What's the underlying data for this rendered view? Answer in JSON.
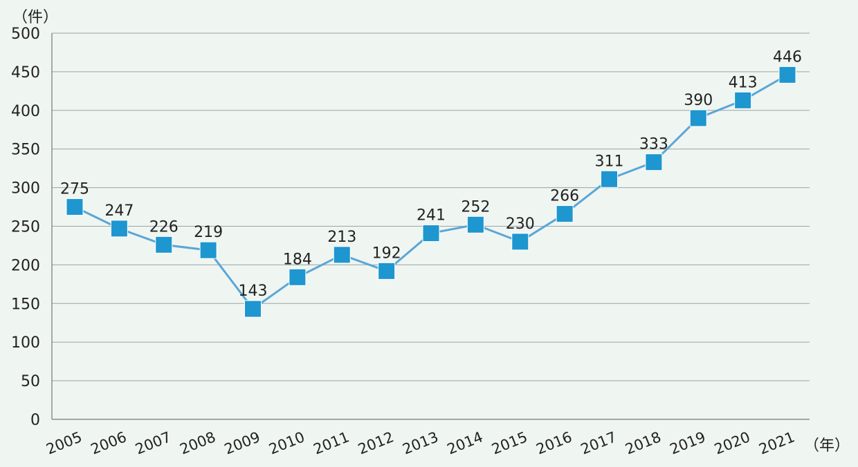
{
  "chart_data": {
    "type": "line",
    "y_unit_label": "（件）",
    "x_unit_label": "（年）",
    "categories": [
      "2005",
      "2006",
      "2007",
      "2008",
      "2009",
      "2010",
      "2011",
      "2012",
      "2013",
      "2014",
      "2015",
      "2016",
      "2017",
      "2018",
      "2019",
      "2020",
      "2021"
    ],
    "series": [
      {
        "values": [
          275,
          247,
          226,
          219,
          143,
          184,
          213,
          192,
          241,
          252,
          230,
          266,
          311,
          333,
          390,
          413,
          446
        ],
        "color": "#1e96cf",
        "line_color": "#5aa6d6",
        "marker": "square"
      }
    ],
    "data_labels": [
      "275",
      "247",
      "226",
      "219",
      "143",
      "184",
      "213",
      "192",
      "241",
      "252",
      "230",
      "266",
      "311",
      "333",
      "390",
      "413",
      "446"
    ],
    "ylim": [
      0,
      500
    ],
    "yticks": [
      "0",
      "50",
      "100",
      "150",
      "200",
      "250",
      "300",
      "350",
      "400",
      "450",
      "500"
    ],
    "grid": true,
    "legend": "none",
    "background_color": "#eff5f1"
  }
}
